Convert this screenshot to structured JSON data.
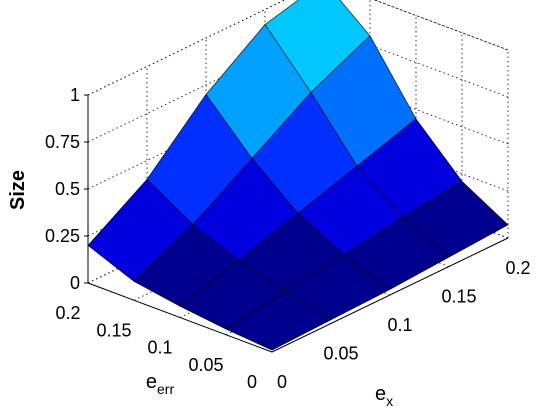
{
  "chart_data": {
    "type": "surface",
    "xlabel": "e",
    "xlabel_sub": "x",
    "ylabel": "e",
    "ylabel_sub": "err",
    "zlabel": "Size",
    "x": [
      0,
      0.05,
      0.1,
      0.15,
      0.2
    ],
    "y": [
      0,
      0.05,
      0.1,
      0.15,
      0.2
    ],
    "z": [
      [
        0.01,
        0.02,
        0.03,
        0.05,
        0.07
      ],
      [
        0.03,
        0.08,
        0.12,
        0.17,
        0.21
      ],
      [
        0.06,
        0.15,
        0.25,
        0.35,
        0.45
      ],
      [
        0.1,
        0.25,
        0.45,
        0.65,
        0.8
      ],
      [
        0.2,
        0.4,
        0.7,
        0.92,
        1.0
      ]
    ],
    "x_ticks": [
      "0",
      "0.05",
      "0.1",
      "0.15",
      "0.2"
    ],
    "y_ticks": [
      "0",
      "0.05",
      "0.1",
      "0.15",
      "0.2"
    ],
    "z_ticks": [
      "0",
      "0.25",
      "0.5",
      "0.75",
      "1"
    ],
    "xlim": [
      0,
      0.2
    ],
    "ylim": [
      0,
      0.2
    ],
    "zlim": [
      0,
      1
    ],
    "grid": true,
    "colormap": [
      "#00008F",
      "#0000DF",
      "#0030FF",
      "#0070FF",
      "#00A0FF",
      "#00C8FF"
    ]
  }
}
